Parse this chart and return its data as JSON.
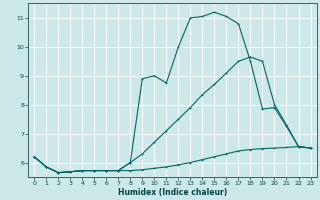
{
  "xlabel": "Humidex (Indice chaleur)",
  "bg_color": "#cce8e8",
  "grid_color": "#ffffff",
  "line_color": "#006666",
  "xlim": [
    -0.5,
    23.5
  ],
  "ylim": [
    5.5,
    11.5
  ],
  "yticks": [
    6,
    7,
    8,
    9,
    10,
    11
  ],
  "xticks": [
    0,
    1,
    2,
    3,
    4,
    5,
    6,
    7,
    8,
    9,
    10,
    11,
    12,
    13,
    14,
    15,
    16,
    17,
    18,
    19,
    20,
    21,
    22,
    23
  ],
  "line1_x": [
    0,
    1,
    2,
    3,
    4,
    5,
    6,
    7,
    8,
    9,
    10,
    11,
    12,
    13,
    14,
    15,
    16,
    17,
    18,
    19,
    20,
    21,
    22,
    23
  ],
  "line1_y": [
    6.2,
    5.85,
    5.65,
    5.68,
    5.72,
    5.72,
    5.72,
    5.72,
    5.72,
    5.75,
    5.8,
    5.85,
    5.92,
    6.0,
    6.1,
    6.2,
    6.3,
    6.4,
    6.45,
    6.48,
    6.5,
    6.52,
    6.55,
    6.5
  ],
  "line2_x": [
    0,
    1,
    2,
    3,
    4,
    5,
    6,
    7,
    8,
    9,
    10,
    11,
    12,
    13,
    14,
    15,
    16,
    17,
    18,
    19,
    20,
    21,
    22,
    23
  ],
  "line2_y": [
    6.2,
    5.85,
    5.65,
    5.68,
    5.72,
    5.72,
    5.72,
    5.72,
    6.0,
    6.3,
    6.7,
    7.1,
    7.5,
    7.9,
    8.35,
    8.7,
    9.1,
    9.5,
    9.65,
    9.5,
    8.0,
    7.3,
    6.55,
    6.5
  ],
  "line3_x": [
    0,
    1,
    2,
    3,
    4,
    5,
    6,
    7,
    8,
    9,
    10,
    11,
    12,
    13,
    14,
    15,
    16,
    17,
    18,
    19,
    20,
    21,
    22,
    23
  ],
  "line3_y": [
    6.2,
    5.85,
    5.65,
    5.68,
    5.72,
    5.72,
    5.72,
    5.72,
    6.0,
    8.9,
    9.0,
    8.75,
    10.0,
    11.0,
    11.05,
    11.2,
    11.05,
    10.8,
    9.5,
    7.85,
    7.9,
    7.25,
    6.55,
    6.5
  ]
}
